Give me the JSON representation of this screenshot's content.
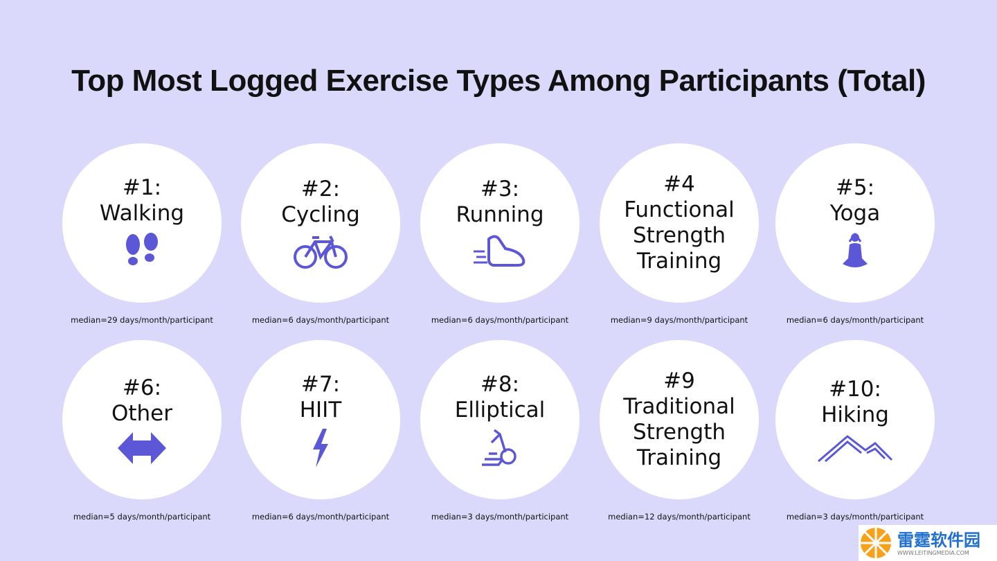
{
  "title": "Top Most Logged Exercise Types Among Participants (Total)",
  "items": [
    {
      "rank": "#1:",
      "label": "Walking",
      "caption": "median=29 days/month/participant"
    },
    {
      "rank": "#2:",
      "label": "Cycling",
      "caption": "median=6 days/month/participant"
    },
    {
      "rank": "#3:",
      "label": "Running",
      "caption": "median=6 days/month/participant"
    },
    {
      "rank": "#4",
      "label": "Functional Strength Training",
      "caption": "median=9 days/month/participant"
    },
    {
      "rank": "#5:",
      "label": "Yoga",
      "caption": "median=6 days/month/participant"
    },
    {
      "rank": "#6:",
      "label": "Other",
      "caption": "median=5 days/month/participant"
    },
    {
      "rank": "#7:",
      "label": "HIIT",
      "caption": "median=6 days/month/participant"
    },
    {
      "rank": "#8:",
      "label": "Elliptical",
      "caption": "median=3 days/month/participant"
    },
    {
      "rank": "#9",
      "label": "Traditional Strength Training",
      "caption": "median=12 days/month/participant"
    },
    {
      "rank": "#10:",
      "label": "Hiking",
      "caption": "median=3 days/month/participant"
    }
  ],
  "watermark": {
    "name": "雷霆软件园",
    "url": "WWW.LEITINGMEDIA.COM"
  }
}
